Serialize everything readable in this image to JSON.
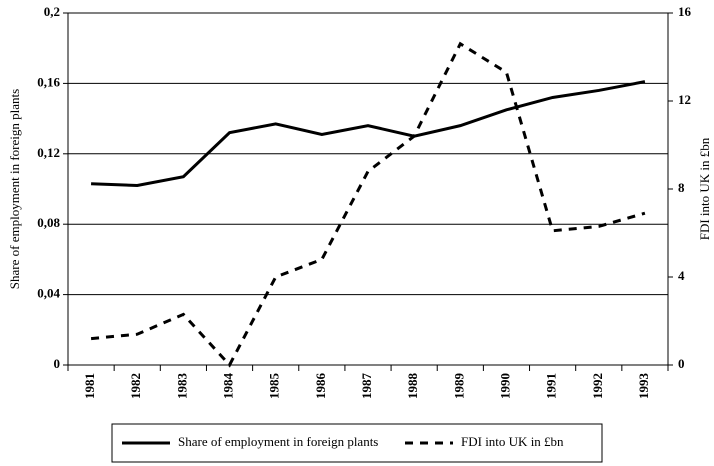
{
  "chart_data": {
    "type": "line",
    "y_axis_label": "Share of employment in foreign plants",
    "y2_axis_label": "FDI into UK in £bn",
    "categories": [
      "1981",
      "1982",
      "1983",
      "1984",
      "1985",
      "1986",
      "1987",
      "1988",
      "1989",
      "1990",
      "1991",
      "1992",
      "1993"
    ],
    "series": [
      {
        "name": "Share of employment in foreign plants",
        "color": "#000000",
        "line_style": "solid",
        "values": [
          0.103,
          0.102,
          0.107,
          0.132,
          0.137,
          0.131,
          0.136,
          0.13,
          0.136,
          0.145,
          0.152,
          0.156,
          0.161
        ]
      },
      {
        "name": "FDI into UK in £bn",
        "color": "#000000",
        "line_style": "dashed",
        "axis": "y2",
        "values": [
          1.2,
          1.4,
          2.3,
          0.0,
          4.0,
          4.8,
          8.8,
          10.4,
          14.6,
          13.3,
          6.1,
          6.3,
          6.9
        ]
      }
    ],
    "ylim": [
      0,
      0.2
    ],
    "yticks": [
      0,
      {
        "value": 0.04,
        "label": "0,04"
      },
      {
        "value": 0.08,
        "label": "0,08"
      },
      {
        "value": 0.12,
        "label": "0,12"
      },
      {
        "value": 0.16,
        "label": "0,16"
      },
      {
        "value": 0.2,
        "label": "0,2"
      }
    ],
    "y2lim": [
      0,
      16
    ],
    "y2ticks": [
      0,
      4,
      8,
      12,
      16
    ],
    "grid": true,
    "legend": "bottom"
  }
}
